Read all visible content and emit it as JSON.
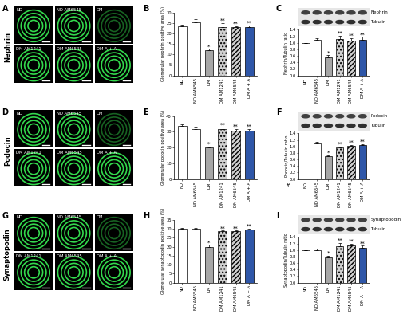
{
  "chart_data": [
    {
      "type": "bar",
      "panel_label": "B",
      "y_label": "Glomerular nephrin positive area (%)",
      "categories": [
        "ND",
        "ND AM6545",
        "DM",
        "DM AM1241",
        "DM AM6545",
        "DM A + A"
      ],
      "values": [
        23.5,
        25.5,
        12,
        23,
        23,
        23
      ],
      "errors": [
        0.8,
        1.5,
        0.6,
        2,
        0.5,
        0.8
      ],
      "colors": [
        "#ffffff",
        "#ffffff",
        "#a6a6a6",
        "#d0d0d0",
        "#d0d0d0",
        "#2e56a8"
      ],
      "marks": [
        null,
        null,
        "*",
        "**",
        "**",
        "**"
      ],
      "ylim": [
        0,
        30
      ],
      "yticks": [
        0,
        5,
        10,
        15,
        20,
        25,
        30
      ]
    },
    {
      "type": "bar",
      "panel_label": "C",
      "y_label": "Nephrin/Tubulin ratio",
      "categories": [
        "ND",
        "ND AM6545",
        "DM",
        "DM AM1241",
        "DM AM6545",
        "DM A + A"
      ],
      "values": [
        1.0,
        1.08,
        0.55,
        1.12,
        1.07,
        1.1
      ],
      "errors": [
        0.0,
        0.07,
        0.07,
        0.1,
        0.07,
        0.08
      ],
      "colors": [
        "#ffffff",
        "#ffffff",
        "#a6a6a6",
        "#d0d0d0",
        "#d0d0d0",
        "#2e56a8"
      ],
      "marks": [
        null,
        null,
        "*",
        "**",
        "**",
        "**"
      ],
      "blot": [
        "Nephrin",
        "Tubulin"
      ],
      "ylim": [
        0,
        1.4
      ],
      "yticks": [
        0.0,
        0.2,
        0.4,
        0.6,
        0.8,
        1.0,
        1.2,
        1.4
      ]
    },
    {
      "type": "bar",
      "panel_label": "E",
      "y_label": "Glomerular podocin positive area (%)",
      "categories": [
        "ND",
        "ND AM6545",
        "DM",
        "DM AM1241",
        "DM AM6545",
        "DM A + A"
      ],
      "values": [
        34,
        32,
        20,
        32,
        30.5,
        30.5
      ],
      "errors": [
        1,
        1.2,
        0.8,
        1,
        1.2,
        1.5
      ],
      "colors": [
        "#ffffff",
        "#ffffff",
        "#a6a6a6",
        "#d0d0d0",
        "#d0d0d0",
        "#2e56a8"
      ],
      "marks": [
        null,
        null,
        "*",
        "**",
        "**",
        "**"
      ],
      "ylim": [
        0,
        40
      ],
      "yticks": [
        0,
        10,
        20,
        30,
        40
      ]
    },
    {
      "type": "bar",
      "panel_label": "F",
      "y_label": "Podocin/Tubulin ratio",
      "categories": [
        "ND",
        "ND AM6545",
        "DM",
        "DM AM1241",
        "DM AM6545",
        "DM A + A"
      ],
      "values": [
        1.0,
        1.1,
        0.7,
        0.98,
        1.02,
        1.05
      ],
      "errors": [
        0.0,
        0.03,
        0.03,
        0.02,
        0.02,
        0.03
      ],
      "colors": [
        "#ffffff",
        "#ffffff",
        "#a6a6a6",
        "#d0d0d0",
        "#d0d0d0",
        "#2e56a8"
      ],
      "marks": [
        null,
        null,
        "*",
        "**",
        "**",
        "**"
      ],
      "blot": [
        "Podocin",
        "Tubulin"
      ],
      "annotations": [
        "#"
      ],
      "ylim": [
        0,
        1.4
      ],
      "yticks": [
        0.0,
        0.2,
        0.4,
        0.6,
        0.8,
        1.0,
        1.2,
        1.4
      ]
    },
    {
      "type": "bar",
      "panel_label": "H",
      "y_label": "Glomerular synaptopodin positive area (%)",
      "categories": [
        "ND",
        "ND AM6545",
        "DM",
        "DM AM1241",
        "DM AM6545",
        "DM A + A"
      ],
      "values": [
        30,
        30,
        20,
        28.5,
        28.5,
        29.5
      ],
      "errors": [
        0.5,
        0.5,
        1,
        0.5,
        0.5,
        0.5
      ],
      "colors": [
        "#ffffff",
        "#ffffff",
        "#a6a6a6",
        "#d0d0d0",
        "#d0d0d0",
        "#2e56a8"
      ],
      "marks": [
        null,
        null,
        "*",
        "**",
        "**",
        "**"
      ],
      "ylim": [
        0,
        35
      ],
      "yticks": [
        0,
        5,
        10,
        15,
        20,
        25,
        30,
        35
      ]
    },
    {
      "type": "bar",
      "panel_label": "I",
      "y_label": "Synaptopodin/Tubulin ratio",
      "categories": [
        "ND",
        "ND AM6545",
        "DM",
        "DM AM1241",
        "DM AM6545",
        "DM A + A"
      ],
      "values": [
        1.0,
        1.0,
        0.77,
        1.12,
        1.15,
        1.08
      ],
      "errors": [
        0.0,
        0.04,
        0.05,
        0.1,
        0.05,
        0.05
      ],
      "colors": [
        "#ffffff",
        "#ffffff",
        "#a6a6a6",
        "#d0d0d0",
        "#d0d0d0",
        "#2e56a8"
      ],
      "marks": [
        null,
        null,
        "*",
        "**",
        "**",
        "**"
      ],
      "blot": [
        "Synaptopodin",
        "Tubulin"
      ],
      "ylim": [
        0,
        1.4
      ],
      "yticks": [
        0.0,
        0.2,
        0.4,
        0.6,
        0.8,
        1.0,
        1.2,
        1.4
      ]
    }
  ],
  "image_panels": [
    {
      "panel_label": "A",
      "stain": "Nephrin",
      "labels": [
        "ND",
        "ND AM6545",
        "DM",
        "DM AM1241",
        "DM AM6545",
        "DM A + A"
      ]
    },
    {
      "panel_label": "D",
      "stain": "Podocin",
      "labels": [
        "ND",
        "ND AM6545",
        "DM",
        "DM AM1241",
        "DM AM6545",
        "DM A + A"
      ]
    },
    {
      "panel_label": "G",
      "stain": "Synaptopodin",
      "labels": [
        "ND",
        "ND AM6545",
        "DM",
        "DM AM1241",
        "DM AM6545",
        "DM A + A"
      ]
    }
  ]
}
